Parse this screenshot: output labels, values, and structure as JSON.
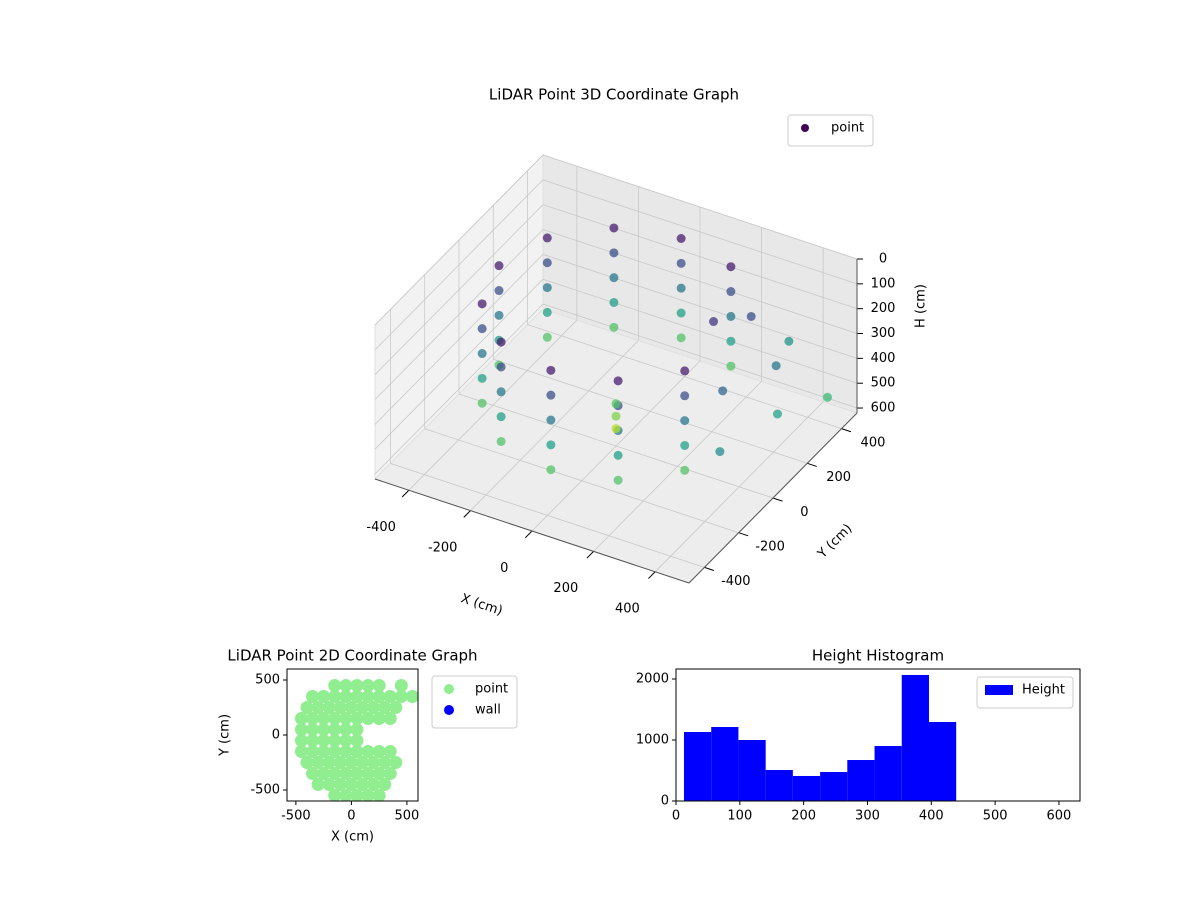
{
  "chart_data": [
    {
      "type": "scatter3d",
      "title": "LiDAR Point 3D Coordinate Graph",
      "xlabel": "X (cm)",
      "ylabel": "Y (cm)",
      "zlabel": "H (cm)",
      "xlim": [
        -510,
        510
      ],
      "ylim": [
        -490,
        490
      ],
      "zlim": [
        0,
        620
      ],
      "zinvert": true,
      "xticks": [
        -400,
        -200,
        0,
        200,
        400
      ],
      "yticks": [
        -400,
        -200,
        0,
        200,
        400
      ],
      "zticks": [
        0,
        100,
        200,
        300,
        400,
        500,
        600
      ],
      "colormap": "viridis",
      "series": [
        {
          "name": "point",
          "color": "#440154",
          "x": [
            190,
            190,
            190,
            190,
            190,
            0,
            0,
            0,
            0,
            0,
            -190,
            -190,
            -190,
            -190,
            -190,
            -329,
            -329,
            -329,
            -329,
            -329,
            -380,
            -380,
            -380,
            -380,
            -380,
            -329,
            -329,
            -329,
            -329,
            -329,
            -190,
            -190,
            -190,
            -190,
            -190,
            0,
            0,
            0,
            0,
            0,
            190,
            190,
            190,
            190,
            190,
            329,
            329,
            329,
            329,
            329,
            0,
            0,
            0,
            300,
            420,
            480,
            380,
            460,
            520,
            250,
            350
          ],
          "y": [
            329,
            329,
            329,
            329,
            329,
            380,
            380,
            380,
            380,
            380,
            329,
            329,
            329,
            329,
            329,
            190,
            190,
            190,
            190,
            190,
            0,
            0,
            0,
            0,
            0,
            -190,
            -190,
            -190,
            -190,
            -190,
            -329,
            -329,
            -329,
            -329,
            -329,
            -380,
            -380,
            -380,
            -380,
            -380,
            -329,
            -329,
            -329,
            -329,
            -329,
            -190,
            -190,
            -190,
            -190,
            -190,
            0,
            0,
            0,
            250,
            180,
            80,
            -60,
            -220,
            300,
            120,
            380
          ],
          "h": [
            50,
            150,
            250,
            350,
            450,
            50,
            150,
            250,
            350,
            450,
            50,
            150,
            250,
            350,
            450,
            50,
            150,
            250,
            350,
            450,
            50,
            150,
            250,
            350,
            450,
            50,
            150,
            250,
            350,
            450,
            50,
            150,
            250,
            350,
            450,
            50,
            150,
            250,
            350,
            450,
            50,
            150,
            250,
            350,
            450,
            50,
            150,
            250,
            350,
            450,
            450,
            500,
            550,
            150,
            250,
            350,
            200,
            300,
            420,
            100,
            320
          ]
        }
      ]
    },
    {
      "type": "scatter",
      "title": "LiDAR Point 2D Coordinate Graph",
      "xlabel": "X (cm)",
      "ylabel": "Y (cm)",
      "xlim": [
        -580,
        600
      ],
      "ylim": [
        -600,
        600
      ],
      "xticks": [
        -500,
        0,
        500
      ],
      "yticks": [
        -500,
        0,
        500
      ],
      "series": [
        {
          "name": "point",
          "color": "#90ee90",
          "x": [
            -150,
            -50,
            50,
            150,
            250,
            450,
            -350,
            -250,
            -150,
            -50,
            50,
            150,
            250,
            350,
            450,
            550,
            -400,
            -300,
            -200,
            -100,
            0,
            100,
            200,
            300,
            400,
            -450,
            -350,
            -250,
            -150,
            -50,
            50,
            150,
            250,
            350,
            -450,
            -350,
            -250,
            -150,
            -50,
            50,
            -450,
            -350,
            -250,
            -150,
            -50,
            50,
            -450,
            -350,
            -250,
            -150,
            -50,
            50,
            150,
            250,
            350,
            -400,
            -300,
            -200,
            -100,
            0,
            100,
            200,
            300,
            400,
            -350,
            -250,
            -150,
            -50,
            50,
            150,
            250,
            350,
            -300,
            -200,
            -100,
            0,
            100,
            200,
            300,
            -150,
            -50,
            50,
            150,
            250
          ],
          "y": [
            450,
            450,
            450,
            450,
            450,
            450,
            350,
            350,
            350,
            350,
            350,
            350,
            350,
            350,
            350,
            350,
            250,
            250,
            250,
            250,
            250,
            250,
            250,
            250,
            250,
            150,
            150,
            150,
            150,
            150,
            150,
            150,
            150,
            150,
            50,
            50,
            50,
            50,
            50,
            50,
            -50,
            -50,
            -50,
            -50,
            -50,
            -50,
            -150,
            -150,
            -150,
            -150,
            -150,
            -150,
            -150,
            -150,
            -150,
            -250,
            -250,
            -250,
            -250,
            -250,
            -250,
            -250,
            -250,
            -250,
            -350,
            -350,
            -350,
            -350,
            -350,
            -350,
            -350,
            -350,
            -450,
            -450,
            -450,
            -450,
            -450,
            -450,
            -450,
            -550,
            -550,
            -550,
            -550,
            -550
          ]
        },
        {
          "name": "wall",
          "color": "#0000ff",
          "x": [],
          "y": []
        }
      ]
    },
    {
      "type": "histogram",
      "title": "Height Histogram",
      "xlim": [
        0,
        633
      ],
      "ylim": [
        0,
        2164
      ],
      "xticks": [
        0,
        100,
        200,
        300,
        400,
        500,
        600
      ],
      "yticks": [
        0,
        1000,
        2000
      ],
      "series": [
        {
          "name": "Height",
          "color": "#0000ff",
          "bins": [
            12.5,
            55.2,
            97.8,
            140.5,
            183.1,
            225.8,
            268.4,
            311.1,
            353.7,
            396.4,
            439
          ],
          "values": [
            1131,
            1213,
            1000,
            508,
            410,
            475,
            672,
            902,
            2066,
            1295
          ]
        }
      ]
    }
  ]
}
